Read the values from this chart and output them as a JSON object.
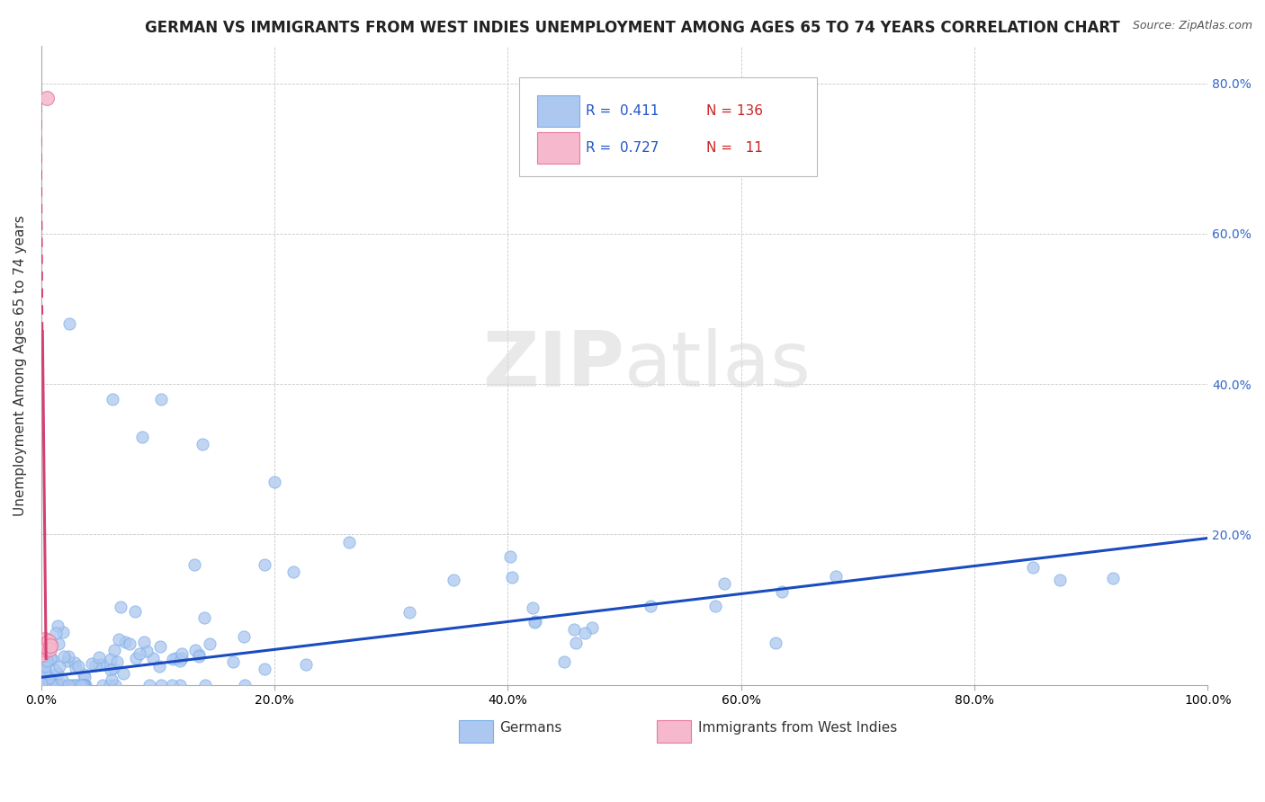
{
  "title": "GERMAN VS IMMIGRANTS FROM WEST INDIES UNEMPLOYMENT AMONG AGES 65 TO 74 YEARS CORRELATION CHART",
  "source": "Source: ZipAtlas.com",
  "ylabel": "Unemployment Among Ages 65 to 74 years",
  "xlim": [
    0,
    1.0
  ],
  "ylim": [
    0,
    0.85
  ],
  "xticks": [
    0.0,
    0.2,
    0.4,
    0.6,
    0.8,
    1.0
  ],
  "xticklabels": [
    "0.0%",
    "20.0%",
    "40.0%",
    "60.0%",
    "80.0%",
    "100.0%"
  ],
  "yticks_left": [
    0.0,
    0.2,
    0.4,
    0.6,
    0.8
  ],
  "yticklabels_left": [
    "",
    "",
    "",
    "",
    ""
  ],
  "yticks_right": [
    0.2,
    0.4,
    0.6,
    0.8
  ],
  "yticklabels_right": [
    "20.0%",
    "40.0%",
    "60.0%",
    "80.0%"
  ],
  "german_color": "#adc8f0",
  "german_edge_color": "#7aaee8",
  "west_indies_color": "#f5b8cc",
  "west_indies_edge_color": "#e87aa0",
  "blue_line_color": "#1a4bbf",
  "pink_line_color": "#d44070",
  "legend_R1": "0.411",
  "legend_N1": "136",
  "legend_R2": "0.727",
  "legend_N2": "11",
  "legend1_label": "Germans",
  "legend2_label": "Immigrants from West Indies",
  "watermark": "ZIPatlas",
  "background_color": "#ffffff",
  "grid_color": "#c8c8c8",
  "title_color": "#222222",
  "right_tick_color": "#3366cc",
  "source_color": "#555555"
}
